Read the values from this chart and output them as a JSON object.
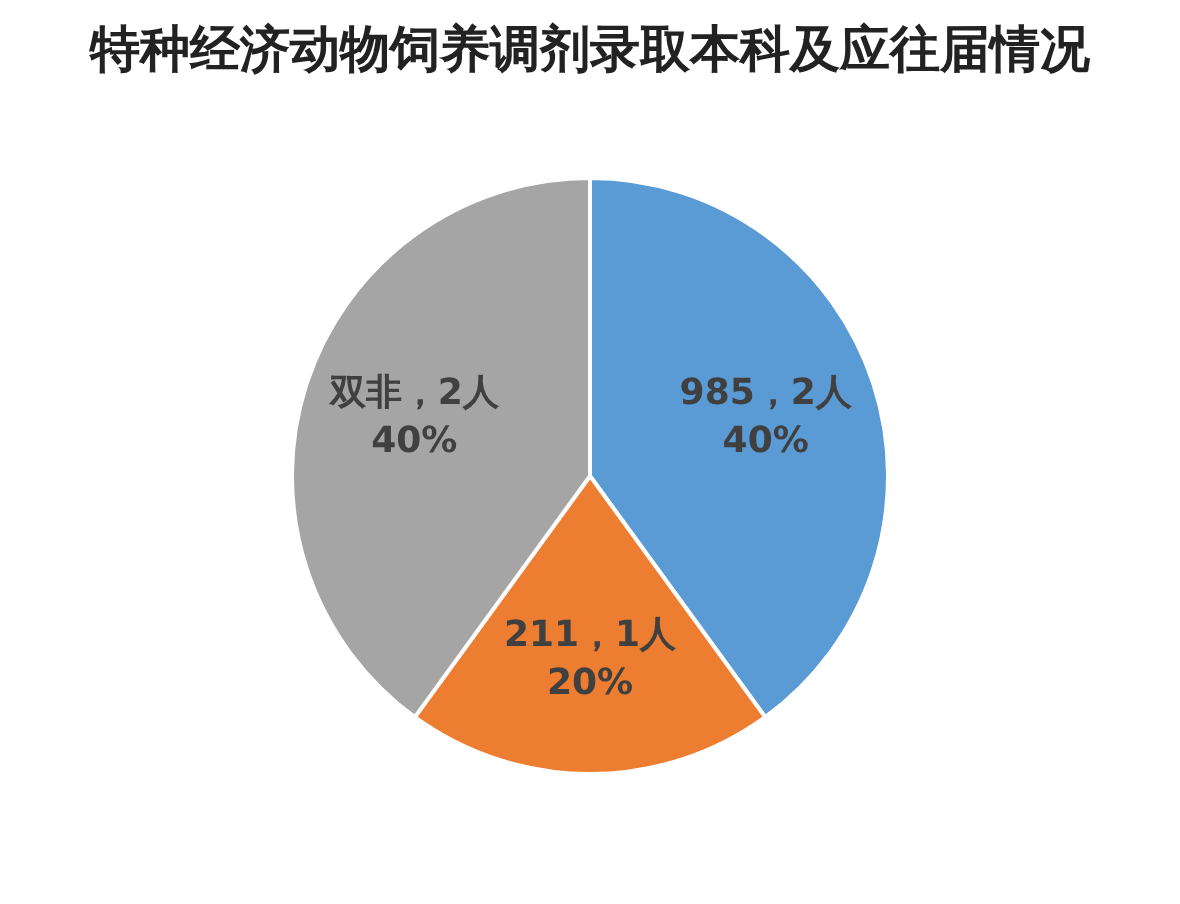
{
  "chart_data": {
    "type": "pie",
    "title": "特种经济动物饲养调剂录取本科及应往届情况",
    "categories": [
      "985",
      "211",
      "双非"
    ],
    "values": [
      2,
      1,
      2
    ],
    "colors": [
      "#5b9bd5",
      "#ed7d31",
      "#a5a5a5"
    ],
    "value_labels": [
      "2人\n40%",
      "1人\n20%",
      "2人\n40%"
    ],
    "legend": false
  }
}
